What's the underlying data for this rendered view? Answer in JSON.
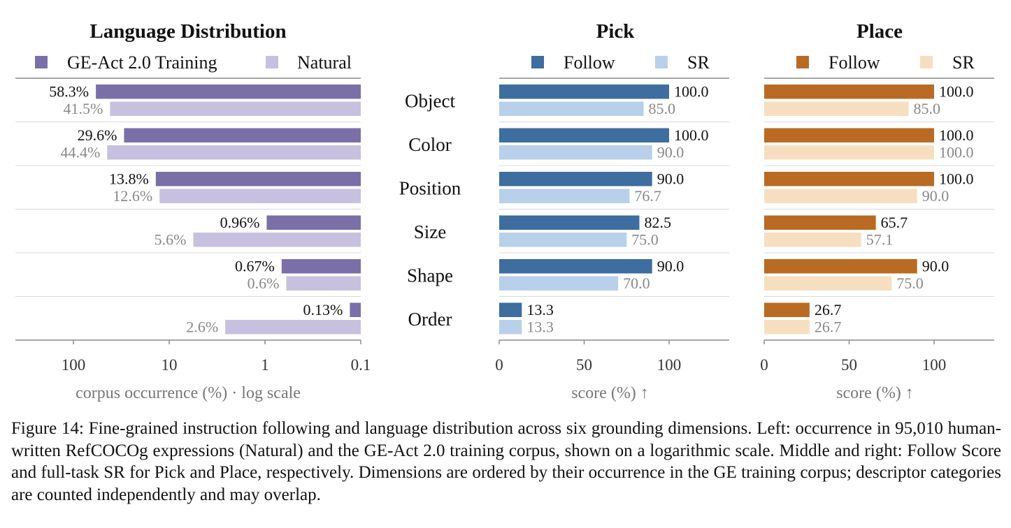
{
  "chart_data": [
    {
      "type": "bar",
      "orientation": "horizontal",
      "title": "Language Distribution",
      "categories": [
        "Object",
        "Color",
        "Position",
        "Size",
        "Shape",
        "Order"
      ],
      "series": [
        {
          "name": "GE-Act 2.0 Training",
          "values": [
            58.3,
            29.6,
            13.8,
            0.96,
            0.67,
            0.13
          ],
          "labels": [
            "58.3%",
            "29.6%",
            "13.8%",
            "0.96%",
            "0.67%",
            "0.13%"
          ],
          "color": "#7b6fa8"
        },
        {
          "name": "Natural",
          "values": [
            41.5,
            44.4,
            12.6,
            5.6,
            0.6,
            2.6
          ],
          "labels": [
            "41.5%",
            "44.4%",
            "12.6%",
            "5.6%",
            "0.6%",
            "2.6%"
          ],
          "color": "#c7c1df"
        }
      ],
      "xscale": "log",
      "xdirection": "reversed",
      "xlim": [
        0.1,
        300
      ],
      "xticks": [
        100,
        10,
        1,
        0.1
      ],
      "xticklabels": [
        "100",
        "10",
        "1",
        "0.1"
      ],
      "xlabel": "corpus occurrence (%) · log scale",
      "legend": "top"
    },
    {
      "type": "bar",
      "orientation": "horizontal",
      "title": "Pick",
      "categories": [
        "Object",
        "Color",
        "Position",
        "Size",
        "Shape",
        "Order"
      ],
      "series": [
        {
          "name": "Follow",
          "values": [
            100.0,
            100.0,
            90.0,
            82.5,
            90.0,
            13.3
          ],
          "labels": [
            "100.0",
            "100.0",
            "90.0",
            "82.5",
            "90.0",
            "13.3"
          ],
          "color": "#3e6d9f"
        },
        {
          "name": "SR",
          "values": [
            85.0,
            90.0,
            76.7,
            75.0,
            70.0,
            13.3
          ],
          "labels": [
            "85.0",
            "90.0",
            "76.7",
            "75.0",
            "70.0",
            "13.3"
          ],
          "color": "#b8d0ea"
        }
      ],
      "xlim": [
        0,
        136
      ],
      "xticks": [
        0,
        50,
        100
      ],
      "xticklabels": [
        "0",
        "50",
        "100"
      ],
      "xlabel": "score (%) ↑",
      "legend": "top"
    },
    {
      "type": "bar",
      "orientation": "horizontal",
      "title": "Place",
      "categories": [
        "Object",
        "Color",
        "Position",
        "Size",
        "Shape",
        "Order"
      ],
      "series": [
        {
          "name": "Follow",
          "values": [
            100.0,
            100.0,
            100.0,
            65.7,
            90.0,
            26.7
          ],
          "labels": [
            "100.0",
            "100.0",
            "100.0",
            "65.7",
            "90.0",
            "26.7"
          ],
          "color": "#b96b23"
        },
        {
          "name": "SR",
          "values": [
            85.0,
            100.0,
            90.0,
            57.1,
            75.0,
            26.7
          ],
          "labels": [
            "85.0",
            "100.0",
            "90.0",
            "57.1",
            "75.0",
            "26.7"
          ],
          "color": "#f6dfc0"
        }
      ],
      "xlim": [
        0,
        136
      ],
      "xticks": [
        0,
        50,
        100
      ],
      "xticklabels": [
        "0",
        "50",
        "100"
      ],
      "xlabel": "score (%) ↑",
      "legend": "top"
    }
  ],
  "caption": "Figure 14: Fine-grained instruction following and language distribution across six grounding dimensions. Left: occurrence in 95,010 human-written RefCOCOg expressions (Natural) and the GE-Act 2.0 training corpus, shown on a logarithmic scale. Middle and right: Follow Score and full-task SR for Pick and Place, respectively. Dimensions are ordered by their occurrence in the GE training corpus; descriptor categories are counted independently and may overlap."
}
